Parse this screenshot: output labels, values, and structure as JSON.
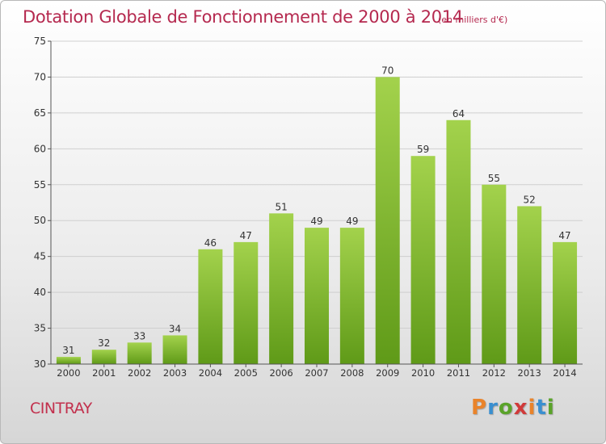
{
  "header": {
    "title": "Dotation Globale de Fonctionnement de 2000 à 2014",
    "subtitle": "(en milliers d'€)"
  },
  "footer": {
    "place": "CINTRAY",
    "logo": "Proxiti",
    "logo_colors": [
      "#e9832a",
      "#3a8fd0",
      "#5aa32a",
      "#d03a3a",
      "#e9832a",
      "#3a8fd0",
      "#5aa32a"
    ]
  },
  "colors": {
    "bar_top": "#a3d24c",
    "bar_bottom": "#5f9a18",
    "title": "#b5294f",
    "grid": "#cfcfcf",
    "axis_text": "#333333"
  },
  "chart_data": {
    "type": "bar",
    "title": "Dotation Globale de Fonctionnement de 2000 à 2014",
    "subtitle": "(en milliers d'€)",
    "xlabel": "",
    "ylabel": "",
    "categories": [
      "2000",
      "2001",
      "2002",
      "2003",
      "2004",
      "2005",
      "2006",
      "2007",
      "2008",
      "2009",
      "2010",
      "2011",
      "2012",
      "2013",
      "2014"
    ],
    "values": [
      31,
      32,
      33,
      34,
      46,
      47,
      51,
      49,
      49,
      70,
      59,
      64,
      55,
      52,
      47
    ],
    "ylim": [
      30,
      75
    ],
    "yticks": [
      30,
      35,
      40,
      45,
      50,
      55,
      60,
      65,
      70,
      75
    ],
    "grid": true,
    "legend": "none"
  }
}
